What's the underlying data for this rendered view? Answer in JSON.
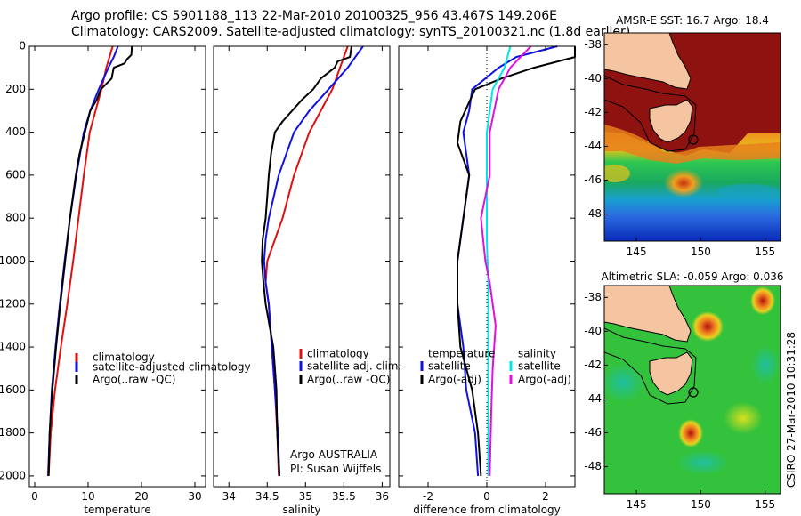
{
  "header": {
    "line1": "Argo profile: CS 5901188_113 22-Mar-2010 20100325_956 43.467S 149.206E",
    "line2": "Climatology: CARS2009. Satellite-adjusted climatology: synTS_20100321.nc (1.8d earlier)"
  },
  "footer": {
    "institution": "Argo AUSTRALIA",
    "pi": "PI: Susan Wijffels",
    "stamp": "CSIRO 27-Mar-2010 10:31:28"
  },
  "colors": {
    "climatology": "#e01010",
    "satellite": "#1010e0",
    "argo": "#000000",
    "satellite_salinity": "#00e5e5",
    "argo_adj_salinity": "#e010e0"
  },
  "chart_data": [
    {
      "type": "line",
      "xlabel": "temperature",
      "xlim": [
        -1,
        32
      ],
      "ylim": [
        2050,
        0
      ],
      "xticks": [
        0,
        10,
        20,
        30
      ],
      "yticks": [
        0,
        200,
        400,
        600,
        800,
        1000,
        1200,
        1400,
        1600,
        1800,
        2000
      ],
      "legend": {
        "placement": "lower-right",
        "entries": [
          "climatology",
          "satellite-adjusted climatology",
          "Argo(..raw -QC)"
        ]
      },
      "series": [
        {
          "name": "climatology",
          "color": "#e01010",
          "points": [
            [
              14.6,
              0
            ],
            [
              14,
              50
            ],
            [
              13.4,
              100
            ],
            [
              12.5,
              200
            ],
            [
              11.4,
              300
            ],
            [
              10.3,
              400
            ],
            [
              9.2,
              600
            ],
            [
              8.2,
              800
            ],
            [
              7.2,
              1000
            ],
            [
              6.1,
              1200
            ],
            [
              4.9,
              1400
            ],
            [
              3.8,
              1600
            ],
            [
              3,
              1800
            ],
            [
              2.6,
              2000
            ]
          ]
        },
        {
          "name": "satellite-adjusted climatology",
          "color": "#1010e0",
          "points": [
            [
              15.6,
              0
            ],
            [
              14.8,
              50
            ],
            [
              13.8,
              100
            ],
            [
              12,
              200
            ],
            [
              10.4,
              300
            ],
            [
              9.2,
              400
            ],
            [
              7.8,
              600
            ],
            [
              6.6,
              800
            ],
            [
              5.6,
              1000
            ],
            [
              4.7,
              1200
            ],
            [
              3.9,
              1400
            ],
            [
              3.2,
              1600
            ],
            [
              2.8,
              1800
            ],
            [
              2.5,
              2000
            ]
          ]
        },
        {
          "name": "Argo(..raw -QC)",
          "color": "#000000",
          "points": [
            [
              18.2,
              0
            ],
            [
              18.1,
              40
            ],
            [
              17.3,
              60
            ],
            [
              16.8,
              80
            ],
            [
              14.8,
              100
            ],
            [
              14.4,
              150
            ],
            [
              12.4,
              200
            ],
            [
              11.6,
              250
            ],
            [
              10.4,
              300
            ],
            [
              9.4,
              400
            ],
            [
              8.4,
              500
            ],
            [
              7.7,
              600
            ],
            [
              6.6,
              800
            ],
            [
              5.7,
              1000
            ],
            [
              4.8,
              1200
            ],
            [
              4,
              1400
            ],
            [
              3.3,
              1600
            ],
            [
              2.8,
              1800
            ],
            [
              2.6,
              2000
            ]
          ]
        }
      ]
    },
    {
      "type": "line",
      "xlabel": "salinity",
      "xlim": [
        33.8,
        36.1
      ],
      "ylim": [
        2050,
        0
      ],
      "xticks": [
        34,
        34.5,
        35,
        35.5,
        36
      ],
      "legend": {
        "placement": "lower-right",
        "entries": [
          "climatology",
          "satellite adj. clim.",
          "Argo(..raw -QC)"
        ]
      },
      "series": [
        {
          "name": "climatology",
          "color": "#e01010",
          "points": [
            [
              35.55,
              0
            ],
            [
              35.45,
              100
            ],
            [
              35.35,
              200
            ],
            [
              35.2,
              300
            ],
            [
              35.05,
              400
            ],
            [
              34.85,
              600
            ],
            [
              34.7,
              800
            ],
            [
              34.6,
              900
            ],
            [
              34.5,
              1000
            ],
            [
              34.48,
              1100
            ],
            [
              34.52,
              1200
            ],
            [
              34.56,
              1400
            ],
            [
              34.6,
              1600
            ],
            [
              34.63,
              1800
            ],
            [
              34.65,
              2000
            ]
          ]
        },
        {
          "name": "satellite adj. clim.",
          "color": "#1010e0",
          "points": [
            [
              35.75,
              0
            ],
            [
              35.55,
              100
            ],
            [
              35.3,
              200
            ],
            [
              35.05,
              300
            ],
            [
              34.85,
              400
            ],
            [
              34.65,
              600
            ],
            [
              34.52,
              800
            ],
            [
              34.48,
              900
            ],
            [
              34.46,
              1000
            ],
            [
              34.48,
              1100
            ],
            [
              34.52,
              1200
            ],
            [
              34.56,
              1400
            ],
            [
              34.6,
              1600
            ],
            [
              34.64,
              1800
            ],
            [
              34.66,
              2000
            ]
          ]
        },
        {
          "name": "Argo(..raw -QC)",
          "color": "#000000",
          "points": [
            [
              35.6,
              0
            ],
            [
              35.58,
              50
            ],
            [
              35.42,
              70
            ],
            [
              35.38,
              100
            ],
            [
              35.2,
              150
            ],
            [
              35.1,
              200
            ],
            [
              34.95,
              250
            ],
            [
              34.7,
              350
            ],
            [
              34.6,
              400
            ],
            [
              34.55,
              500
            ],
            [
              34.52,
              600
            ],
            [
              34.5,
              700
            ],
            [
              34.48,
              800
            ],
            [
              34.44,
              900
            ],
            [
              34.43,
              1000
            ],
            [
              34.45,
              1100
            ],
            [
              34.48,
              1200
            ],
            [
              34.53,
              1300
            ],
            [
              34.58,
              1400
            ],
            [
              34.6,
              1500
            ],
            [
              34.62,
              1600
            ],
            [
              34.63,
              1800
            ],
            [
              34.66,
              2000
            ]
          ]
        }
      ]
    },
    {
      "type": "line",
      "xlabel": "difference from climatology",
      "xlim": [
        -3,
        3
      ],
      "ylim": [
        2050,
        0
      ],
      "xticks": [
        -2,
        0,
        2
      ],
      "zero_line": "dotted",
      "legend": {
        "placement": "lower-center",
        "groups": [
          {
            "title": "temperature",
            "entries": [
              "satellite",
              "Argo(-adj)"
            ]
          },
          {
            "title": "salinity",
            "entries": [
              "satellite",
              "Argo(-adj)"
            ]
          }
        ]
      },
      "series": [
        {
          "name": "satellite",
          "group": "temperature",
          "color": "#1010e0",
          "points": [
            [
              2.4,
              0
            ],
            [
              1,
              50
            ],
            [
              0.4,
              100
            ],
            [
              -0.5,
              200
            ],
            [
              -0.6,
              300
            ],
            [
              -0.8,
              400
            ],
            [
              -0.6,
              600
            ],
            [
              -0.8,
              800
            ],
            [
              -1,
              1000
            ],
            [
              -1,
              1200
            ],
            [
              -0.8,
              1400
            ],
            [
              -0.7,
              1600
            ],
            [
              -0.4,
              1800
            ],
            [
              -0.3,
              2000
            ]
          ]
        },
        {
          "name": "Argo(-adj)",
          "group": "temperature",
          "color": "#000000",
          "points": [
            [
              3,
              0
            ],
            [
              3,
              50
            ],
            [
              1.6,
              100
            ],
            [
              0.5,
              150
            ],
            [
              -0.4,
              200
            ],
            [
              -0.9,
              350
            ],
            [
              -1,
              450
            ],
            [
              -0.6,
              600
            ],
            [
              -0.8,
              800
            ],
            [
              -1,
              1000
            ],
            [
              -1,
              1200
            ],
            [
              -0.9,
              1400
            ],
            [
              -0.5,
              1600
            ],
            [
              -0.3,
              1800
            ],
            [
              -0.2,
              2000
            ]
          ]
        },
        {
          "name": "satellite",
          "group": "salinity",
          "color": "#00e5e5",
          "points": [
            [
              0.8,
              0
            ],
            [
              0.6,
              100
            ],
            [
              0.2,
              200
            ],
            [
              0,
              400
            ],
            [
              0,
              700
            ],
            [
              0,
              900
            ],
            [
              0.05,
              1100
            ],
            [
              0.05,
              1300
            ],
            [
              0.05,
              1500
            ],
            [
              0.05,
              1800
            ],
            [
              0.05,
              2000
            ]
          ]
        },
        {
          "name": "Argo(-adj)",
          "group": "salinity",
          "color": "#e010e0",
          "points": [
            [
              1.5,
              0
            ],
            [
              0.8,
              100
            ],
            [
              0.4,
              200
            ],
            [
              0.1,
              400
            ],
            [
              0.1,
              600
            ],
            [
              -0.2,
              800
            ],
            [
              -0.05,
              1000
            ],
            [
              0.1,
              1100
            ],
            [
              0.3,
              1300
            ],
            [
              0.2,
              1500
            ],
            [
              0.15,
              1700
            ],
            [
              0.1,
              2000
            ]
          ]
        }
      ]
    },
    {
      "type": "heatmap",
      "title": "AMSR-E SST: 16.7 Argo: 18.4",
      "xlim": [
        142.5,
        156.2
      ],
      "ylim": [
        -49.6,
        -37.3
      ],
      "xticks": [
        145,
        150,
        155
      ],
      "yticks": [
        -38,
        -40,
        -42,
        -44,
        -46,
        -48
      ],
      "argo_location": {
        "lon": 149.206,
        "lat": -43.467
      }
    },
    {
      "type": "heatmap",
      "title": "Altimetric SLA: -0.059 Argo: 0.036",
      "xlim": [
        142.5,
        156.2
      ],
      "ylim": [
        -49.6,
        -37.3
      ],
      "xticks": [
        145,
        150,
        155
      ],
      "yticks": [
        -38,
        -40,
        -42,
        -44,
        -46,
        -48
      ],
      "argo_location": {
        "lon": 149.206,
        "lat": -43.467
      }
    }
  ]
}
